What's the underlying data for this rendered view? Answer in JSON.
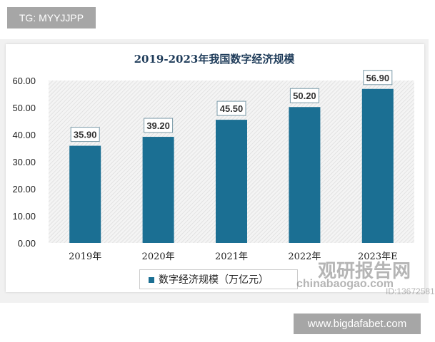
{
  "tag": "TG: MYYJJPP",
  "site": "www.bigdafabet.com",
  "watermark": {
    "cn": "观研报告网",
    "en": "chinabaogao.com",
    "id": "ID:13672581"
  },
  "chart_data": {
    "type": "bar",
    "title": "2019-2023年我国数字经济规模",
    "categories": [
      "2019年",
      "2020年",
      "2021年",
      "2022年",
      "2023年E"
    ],
    "series": [
      {
        "name": "数字经济规模（万亿元）",
        "values": [
          35.9,
          39.2,
          45.5,
          50.2,
          56.9
        ]
      }
    ],
    "data_labels": [
      "35.90",
      "39.20",
      "45.50",
      "50.20",
      "56.90"
    ],
    "yticks": [
      "0.00",
      "10.00",
      "20.00",
      "30.00",
      "40.00",
      "50.00",
      "60.00"
    ],
    "ylim": [
      0,
      60
    ],
    "legend": "bottom",
    "colors": {
      "bar": "#1b6f93"
    }
  }
}
